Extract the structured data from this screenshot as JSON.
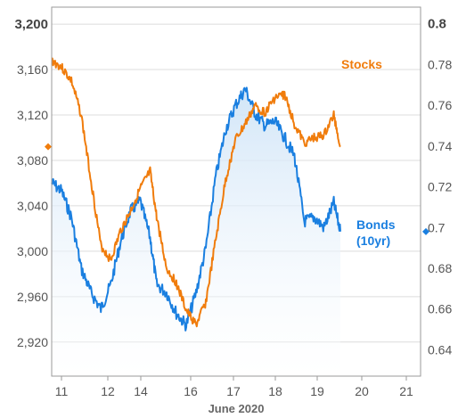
{
  "chart_data": {
    "type": "line",
    "title": "",
    "xlabel": "June 2020",
    "x_ticks": [
      "11",
      "12",
      "14",
      "16",
      "17",
      "18",
      "19",
      "20",
      "21"
    ],
    "y_left": {
      "ticks": [
        "2,920",
        "2,960",
        "3,000",
        "3,040",
        "3,080",
        "3,120",
        "3,160",
        "3,200"
      ],
      "range": [
        2890,
        3215
      ]
    },
    "y_right": {
      "ticks": [
        "0.64",
        "0.66",
        "0.68",
        "0.7",
        "0.72",
        "0.74",
        "0.76",
        "0.78",
        "0.8"
      ],
      "range": [
        0.6271,
        0.8081
      ]
    },
    "grid": "horizontal",
    "colors": {
      "stocks": "#f07c0c",
      "bonds": "#1a7fe0",
      "bonds_fill_top": "#cfe4f7",
      "grid": "#dcdcdc",
      "axis": "#9a9a9a"
    },
    "series": [
      {
        "name": "Stocks",
        "axis": "left",
        "x": [
          0.0,
          0.3,
          0.6,
          0.9,
          1.2,
          1.5,
          1.8,
          2.1,
          2.4,
          2.7,
          3.0,
          3.2,
          3.5,
          3.8,
          4.1,
          4.4,
          4.7,
          5.0,
          5.3,
          5.6,
          5.9,
          6.2,
          6.5,
          6.8,
          7.1,
          7.4,
          7.7,
          8.0,
          8.3,
          8.6,
          8.8
        ],
        "values": [
          3168,
          3162,
          3150,
          3120,
          3062,
          3005,
          2992,
          3018,
          3035,
          3055,
          3070,
          3030,
          2985,
          2972,
          2948,
          2935,
          2955,
          3010,
          3062,
          3098,
          3112,
          3128,
          3122,
          3135,
          3138,
          3112,
          3095,
          3100,
          3102,
          3120,
          3092
        ]
      },
      {
        "name": "Bonds (10yr)",
        "axis": "right",
        "x": [
          0.0,
          0.3,
          0.6,
          0.9,
          1.2,
          1.5,
          1.8,
          2.1,
          2.4,
          2.7,
          3.0,
          3.2,
          3.5,
          3.8,
          4.1,
          4.4,
          4.7,
          5.0,
          5.3,
          5.6,
          5.9,
          6.2,
          6.5,
          6.8,
          7.1,
          7.4,
          7.7,
          8.0,
          8.3,
          8.6,
          8.8
        ],
        "values": [
          0.722,
          0.718,
          0.705,
          0.68,
          0.668,
          0.66,
          0.672,
          0.693,
          0.708,
          0.713,
          0.695,
          0.672,
          0.668,
          0.658,
          0.652,
          0.668,
          0.69,
          0.725,
          0.748,
          0.76,
          0.768,
          0.756,
          0.75,
          0.752,
          0.744,
          0.735,
          0.703,
          0.705,
          0.7,
          0.712,
          0.698
        ]
      }
    ],
    "labels": {
      "stocks": "Stocks",
      "bonds_line1": "Bonds",
      "bonds_line2": "(10yr)"
    }
  }
}
